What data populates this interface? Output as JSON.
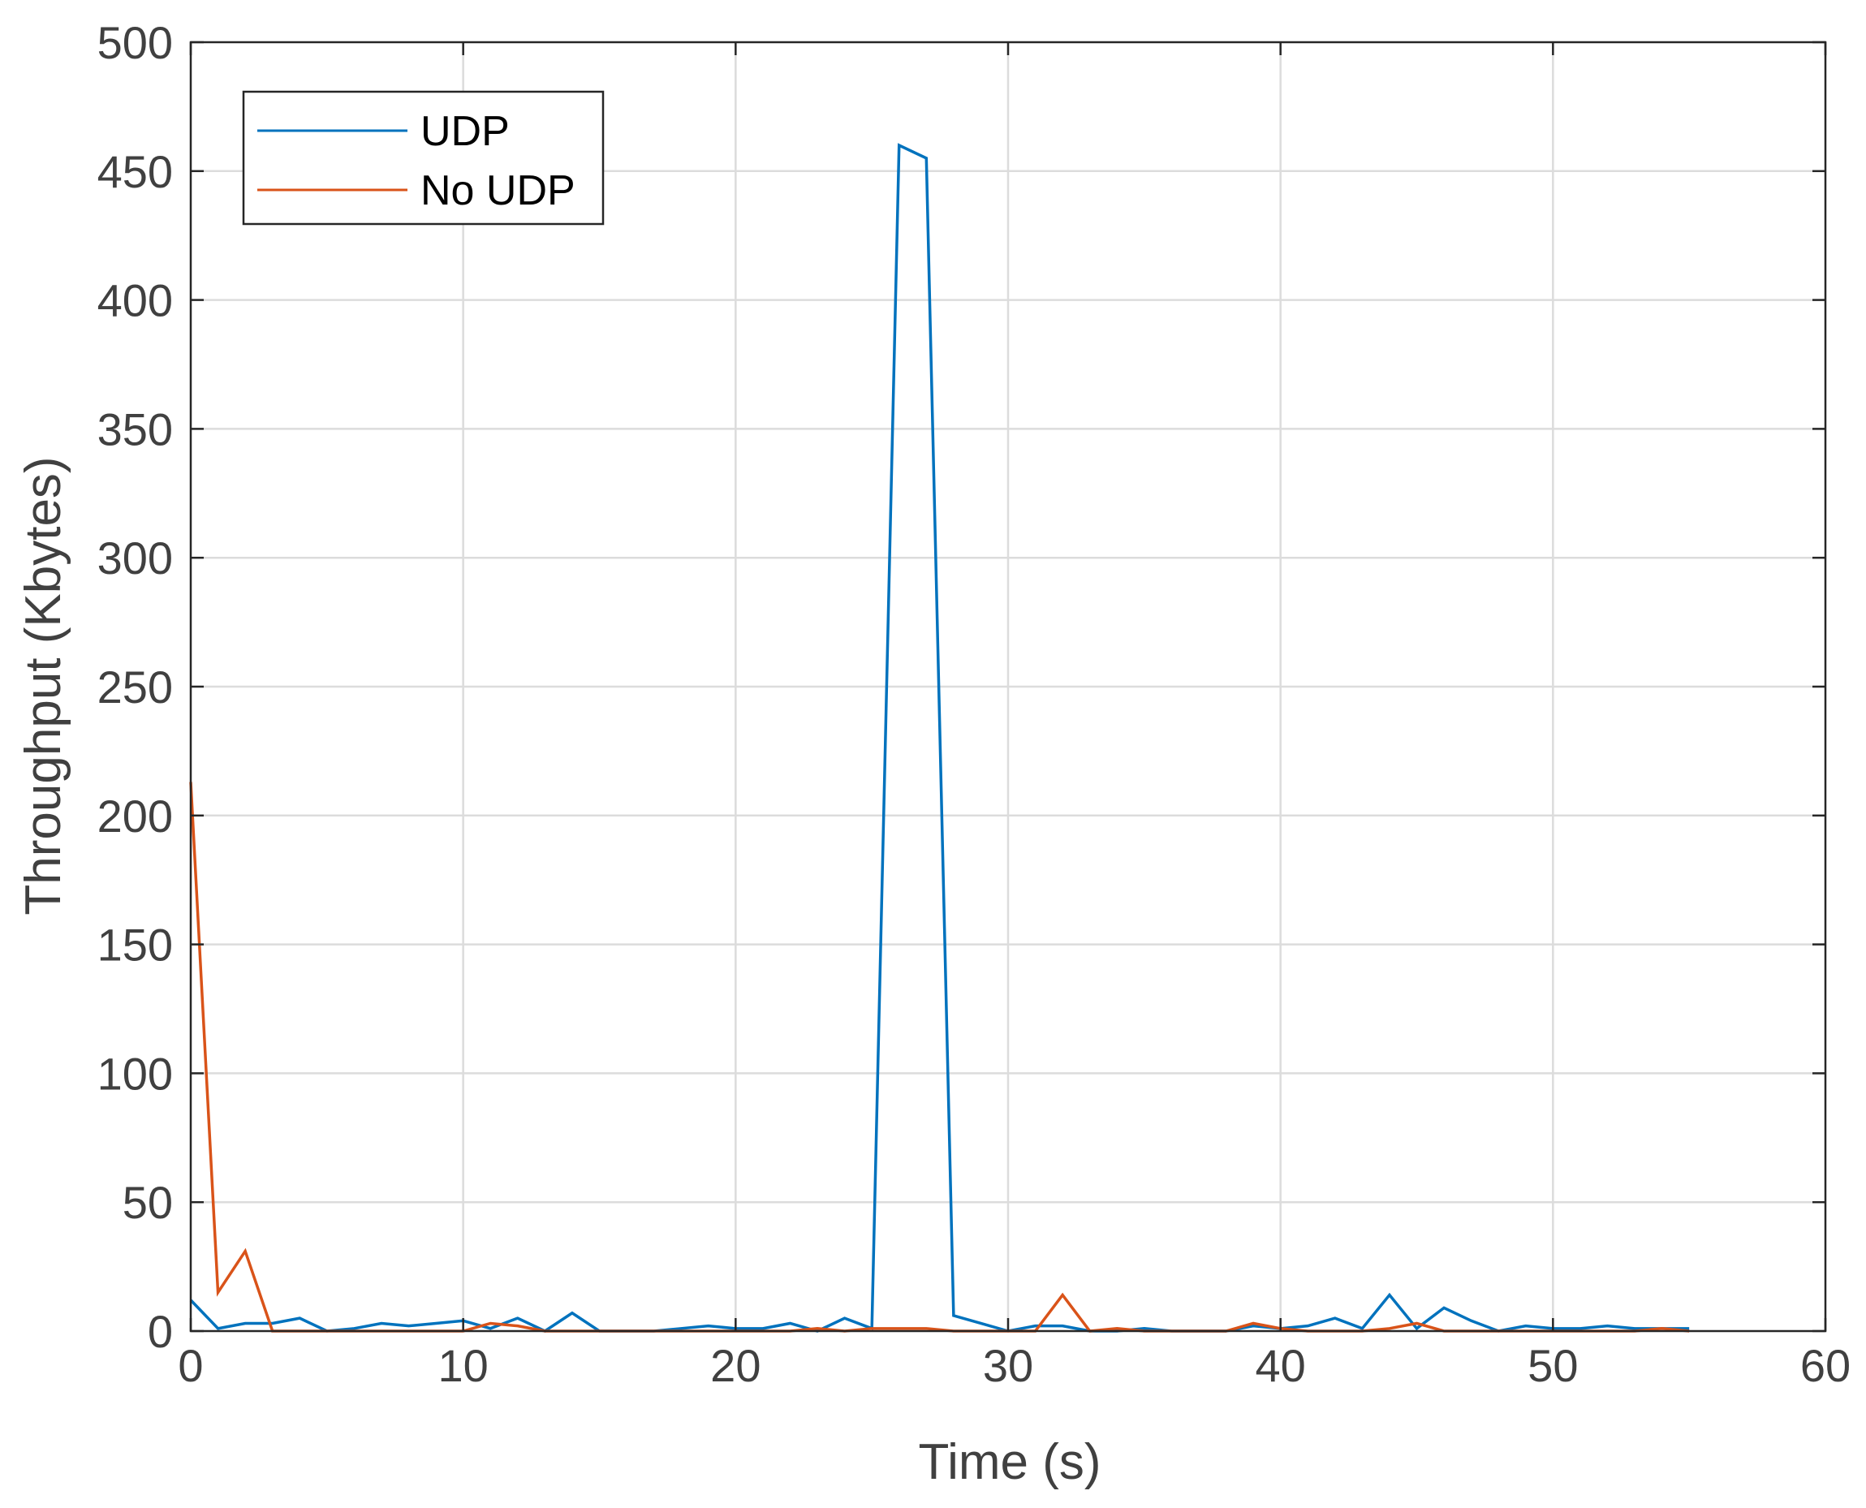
{
  "chart_data": {
    "type": "line",
    "xlabel": "Time (s)",
    "ylabel": "Throughput (Kbytes)",
    "xlim": [
      0,
      60
    ],
    "ylim": [
      0,
      500
    ],
    "xticks": [
      0,
      10,
      20,
      30,
      40,
      50,
      60
    ],
    "yticks": [
      0,
      50,
      100,
      150,
      200,
      250,
      300,
      350,
      400,
      450,
      500
    ],
    "grid": true,
    "legend_position": "top-left",
    "series": [
      {
        "name": "UDP",
        "color": "#0072BD",
        "x": [
          0,
          1,
          2,
          3,
          4,
          5,
          6,
          7,
          8,
          9,
          10,
          11,
          12,
          13,
          14,
          15,
          16,
          17,
          18,
          19,
          20,
          21,
          22,
          23,
          24,
          25,
          26,
          27,
          28,
          29,
          30,
          31,
          32,
          33,
          34,
          35,
          36,
          37,
          38,
          39,
          40,
          41,
          42,
          43,
          44,
          45,
          46,
          47,
          48,
          49,
          50,
          51,
          52,
          53,
          54,
          55
        ],
        "values": [
          12,
          1,
          3,
          3,
          5,
          0,
          1,
          3,
          2,
          3,
          4,
          1,
          5,
          0,
          7,
          0,
          0,
          0,
          1,
          2,
          1,
          1,
          3,
          0,
          5,
          1,
          460,
          455,
          6,
          3,
          0,
          2,
          2,
          0,
          0,
          1,
          0,
          0,
          0,
          2,
          1,
          2,
          5,
          1,
          14,
          1,
          9,
          4,
          0,
          2,
          1,
          1,
          2,
          1,
          1,
          1
        ]
      },
      {
        "name": "No UDP",
        "color": "#D95319",
        "x": [
          0,
          1,
          2,
          3,
          4,
          5,
          6,
          7,
          8,
          9,
          10,
          11,
          12,
          13,
          14,
          15,
          16,
          17,
          18,
          19,
          20,
          21,
          22,
          23,
          24,
          25,
          26,
          27,
          28,
          29,
          30,
          31,
          32,
          33,
          34,
          35,
          36,
          37,
          38,
          39,
          40,
          41,
          42,
          43,
          44,
          45,
          46,
          47,
          48,
          49,
          50,
          51,
          52,
          53,
          54,
          55
        ],
        "values": [
          213,
          15,
          31,
          0,
          0,
          0,
          0,
          0,
          0,
          0,
          0,
          3,
          2,
          0,
          0,
          0,
          0,
          0,
          0,
          0,
          0,
          0,
          0,
          1,
          0,
          1,
          1,
          1,
          0,
          0,
          0,
          0,
          14,
          0,
          1,
          0,
          0,
          0,
          0,
          3,
          1,
          0,
          0,
          0,
          1,
          3,
          0,
          0,
          0,
          0,
          0,
          0,
          0,
          0,
          1,
          0
        ]
      }
    ]
  }
}
